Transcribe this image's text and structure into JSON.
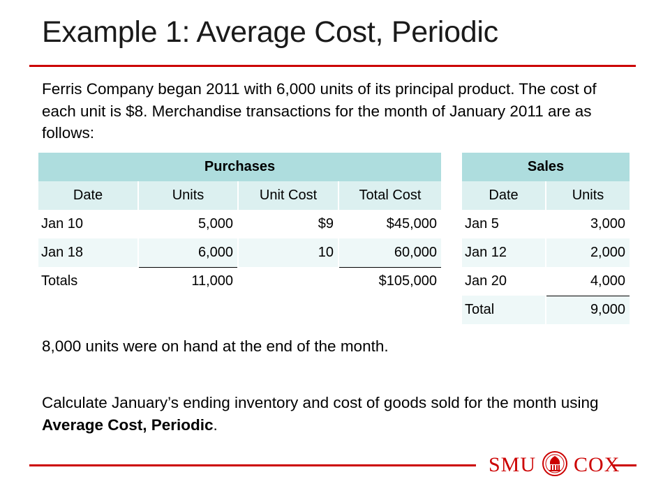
{
  "title": "Example 1: Average Cost, Periodic",
  "intro": "Ferris Company began 2011 with 6,000 units of its principal product. The cost of each unit is $8. Merchandise transactions for the month of January 2011 are as follows:",
  "purchases": {
    "heading": "Purchases",
    "columns": [
      "Date",
      "Units",
      "Unit Cost",
      "Total Cost"
    ],
    "rows": [
      {
        "date": "Jan 10",
        "units": "5,000",
        "unit_cost": "$9",
        "total_cost": "$45,000"
      },
      {
        "date": "Jan 18",
        "units": "6,000",
        "unit_cost": "10",
        "total_cost": "60,000"
      },
      {
        "date": "Totals",
        "units": "11,000",
        "unit_cost": "",
        "total_cost": "$105,000"
      }
    ]
  },
  "sales": {
    "heading": "Sales",
    "columns": [
      "Date",
      "Units"
    ],
    "rows": [
      {
        "date": "Jan 5",
        "units": "3,000"
      },
      {
        "date": "Jan 12",
        "units": "2,000"
      },
      {
        "date": "Jan 20",
        "units": "4,000"
      },
      {
        "date": "Total",
        "units": "9,000"
      }
    ]
  },
  "on_hand_note": "8,000 units were on hand at the end of the month.",
  "calc_prefix": "Calculate January’s ending inventory and cost of goods sold for the month using ",
  "calc_bold": "Average Cost, Periodic",
  "calc_suffix": ".",
  "logo": {
    "left": "SMU",
    "right": "COX"
  },
  "colors": {
    "accent": "#cc0000",
    "header": "#aeddde",
    "subheader": "#dcf0f0",
    "band": "#eef8f8"
  }
}
